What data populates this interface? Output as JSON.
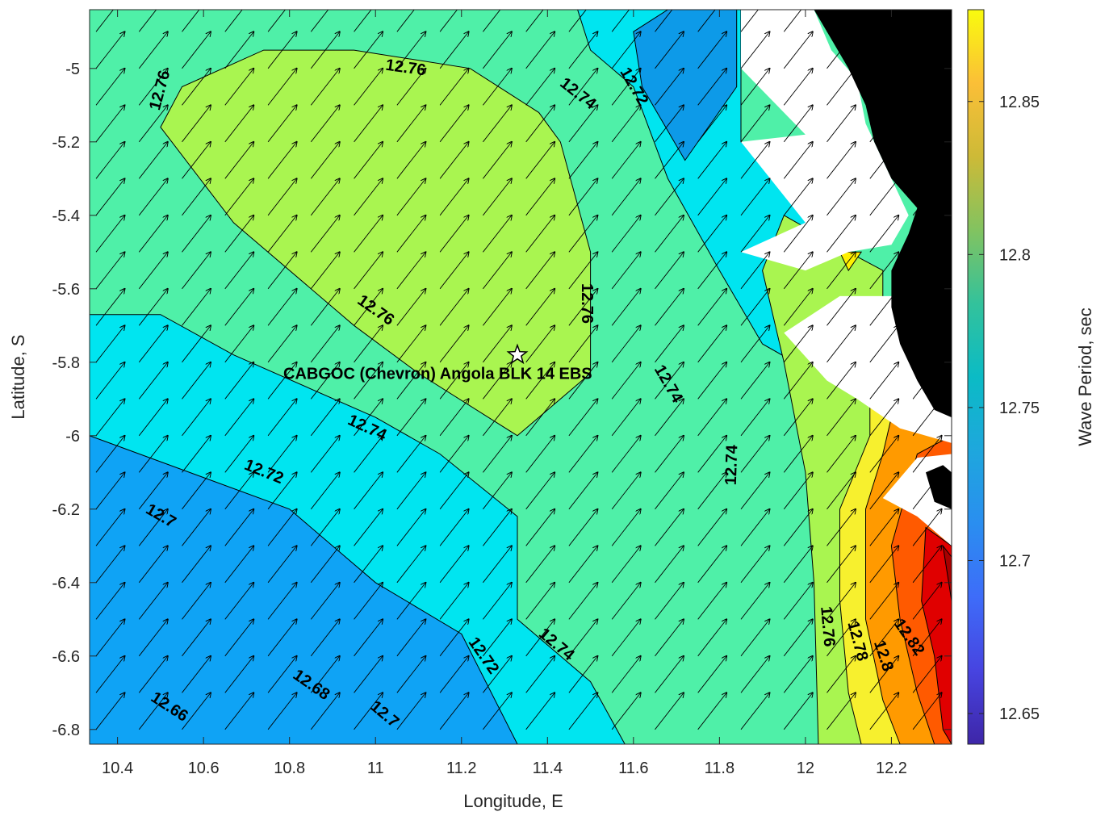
{
  "chart_data": {
    "type": "contour",
    "xlabel": "Longitude, E",
    "ylabel": "Latitude, S",
    "xlim": [
      10.335,
      12.34
    ],
    "ylim": [
      -6.84,
      -4.84
    ],
    "x_ticks": [
      10.4,
      10.6,
      10.8,
      11,
      11.2,
      11.4,
      11.6,
      11.8,
      12,
      12.2
    ],
    "x_tick_labels": [
      "10.4",
      "10.6",
      "10.8",
      "11",
      "11.2",
      "11.4",
      "11.6",
      "11.8",
      "12",
      "12.2"
    ],
    "y_ticks": [
      -5,
      -5.2,
      -5.4,
      -5.6,
      -5.8,
      -6,
      -6.2,
      -6.4,
      -6.6,
      -6.8
    ],
    "y_tick_labels": [
      "-5",
      "-5.2",
      "-5.4",
      "-5.6",
      "-5.8",
      "-6",
      "-6.2",
      "-6.4",
      "-6.6",
      "-6.8"
    ],
    "colorbar": {
      "label": "Wave Period, sec",
      "range": [
        12.64,
        12.88
      ],
      "ticks": [
        12.65,
        12.7,
        12.75,
        12.8,
        12.85
      ],
      "tick_labels": [
        "12.65",
        "12.7",
        "12.75",
        "12.8",
        "12.85"
      ]
    },
    "contour_levels": [
      12.66,
      12.68,
      12.7,
      12.72,
      12.74,
      12.76,
      12.78,
      12.8,
      12.82,
      12.84,
      12.86
    ],
    "contour_labels": [
      {
        "text": "12.76",
        "lon": 10.5,
        "lat": -5.06,
        "angle": -75
      },
      {
        "text": "12.76",
        "lon": 11.07,
        "lat": -5.0,
        "angle": 8
      },
      {
        "text": "12.74",
        "lon": 11.47,
        "lat": -5.07,
        "angle": 38
      },
      {
        "text": "12.72",
        "lon": 11.6,
        "lat": -5.05,
        "angle": 60
      },
      {
        "text": "12.76",
        "lon": 11.49,
        "lat": -5.64,
        "angle": 90
      },
      {
        "text": "12.76",
        "lon": 11.0,
        "lat": -5.66,
        "angle": 35
      },
      {
        "text": "12.74",
        "lon": 11.68,
        "lat": -5.86,
        "angle": 60
      },
      {
        "text": "12.74",
        "lon": 10.98,
        "lat": -5.98,
        "angle": 25
      },
      {
        "text": "12.74",
        "lon": 11.83,
        "lat": -6.08,
        "angle": -88
      },
      {
        "text": "12.72",
        "lon": 10.74,
        "lat": -6.1,
        "angle": 22
      },
      {
        "text": "12.7",
        "lon": 10.5,
        "lat": -6.22,
        "angle": 30
      },
      {
        "text": "12.72",
        "lon": 11.25,
        "lat": -6.6,
        "angle": 55
      },
      {
        "text": "12.74",
        "lon": 11.42,
        "lat": -6.57,
        "angle": 40
      },
      {
        "text": "12.76",
        "lon": 12.05,
        "lat": -6.52,
        "angle": 85
      },
      {
        "text": "12.78",
        "lon": 12.12,
        "lat": -6.56,
        "angle": 75
      },
      {
        "text": "12.8",
        "lon": 12.18,
        "lat": -6.6,
        "angle": 72
      },
      {
        "text": "12.82",
        "lon": 12.24,
        "lat": -6.55,
        "angle": 55
      },
      {
        "text": "12.68",
        "lon": 10.85,
        "lat": -6.68,
        "angle": 35
      },
      {
        "text": "12.7",
        "lon": 11.02,
        "lat": -6.76,
        "angle": 40
      },
      {
        "text": "12.66",
        "lon": 10.52,
        "lat": -6.74,
        "angle": 33
      }
    ],
    "site": {
      "name": "CABGOC (Chevron)  Angola BLK 14  EBS",
      "lon": 11.33,
      "lat": -5.78,
      "marker": "star"
    },
    "regions": [
      {
        "value": 12.662,
        "color": "#0b1fa8",
        "points": [
          [
            10.335,
            -6.84
          ],
          [
            10.335,
            -6.5
          ],
          [
            10.5,
            -6.6
          ],
          [
            10.67,
            -6.72
          ],
          [
            10.85,
            -6.84
          ]
        ]
      },
      {
        "value": 12.69,
        "color": "#0a5ef2",
        "points": [
          [
            10.335,
            -6.34
          ],
          [
            10.5,
            -6.4
          ],
          [
            10.7,
            -6.42
          ],
          [
            10.95,
            -6.48
          ],
          [
            11.15,
            -6.56
          ],
          [
            11.25,
            -6.64
          ],
          [
            11.33,
            -6.84
          ],
          [
            10.335,
            -6.84
          ]
        ]
      },
      {
        "value": 12.72,
        "color": "#0fa3f5",
        "points": [
          [
            10.335,
            -5.84
          ],
          [
            10.5,
            -6.0
          ],
          [
            10.7,
            -6.08
          ],
          [
            10.9,
            -6.16
          ],
          [
            11.12,
            -6.28
          ],
          [
            11.18,
            -6.5
          ],
          [
            11.33,
            -6.54
          ],
          [
            11.33,
            -6.84
          ],
          [
            10.335,
            -6.84
          ]
        ]
      },
      {
        "value": 12.742,
        "color": "#00e5f0",
        "points": [
          [
            10.335,
            -5.67
          ],
          [
            10.5,
            -5.67
          ],
          [
            10.67,
            -5.78
          ],
          [
            11.0,
            -5.95
          ],
          [
            11.15,
            -6.05
          ],
          [
            11.33,
            -6.22
          ],
          [
            11.33,
            -6.5
          ],
          [
            11.5,
            -6.67
          ],
          [
            11.58,
            -6.84
          ],
          [
            11.33,
            -6.84
          ],
          [
            11.2,
            -6.54
          ],
          [
            11.0,
            -6.4
          ],
          [
            10.8,
            -6.2
          ],
          [
            10.335,
            -6.0
          ]
        ]
      },
      {
        "value": 12.742,
        "color": "#00e5f0",
        "points": [
          [
            11.47,
            -4.84
          ],
          [
            11.85,
            -4.84
          ],
          [
            11.85,
            -5.2
          ],
          [
            12.0,
            -5.3
          ],
          [
            12.1,
            -5.55
          ],
          [
            12.2,
            -5.7
          ],
          [
            12.25,
            -5.85
          ],
          [
            12.05,
            -5.85
          ],
          [
            11.9,
            -5.75
          ],
          [
            11.8,
            -5.55
          ],
          [
            11.68,
            -5.3
          ],
          [
            11.6,
            -5.05
          ],
          [
            11.5,
            -4.95
          ]
        ]
      },
      {
        "value": 12.725,
        "color": "#0d9ae8",
        "points": [
          [
            11.68,
            -4.84
          ],
          [
            11.84,
            -4.84
          ],
          [
            11.84,
            -5.05
          ],
          [
            11.72,
            -5.25
          ],
          [
            11.62,
            -5.05
          ],
          [
            11.6,
            -4.9
          ]
        ]
      },
      {
        "value": 12.775,
        "color": "#a9f550",
        "points": [
          [
            10.5,
            -5.16
          ],
          [
            10.55,
            -5.05
          ],
          [
            10.74,
            -4.95
          ],
          [
            10.95,
            -4.95
          ],
          [
            11.22,
            -5.0
          ],
          [
            11.38,
            -5.12
          ],
          [
            11.43,
            -5.2
          ],
          [
            11.5,
            -5.5
          ],
          [
            11.5,
            -5.83
          ],
          [
            11.33,
            -6.0
          ],
          [
            11.1,
            -5.83
          ],
          [
            10.95,
            -5.7
          ],
          [
            10.67,
            -5.42
          ]
        ]
      },
      {
        "value": 12.79,
        "color": "#a9f550",
        "points": [
          [
            11.95,
            -5.4
          ],
          [
            12.1,
            -5.5
          ],
          [
            12.18,
            -5.55
          ],
          [
            12.18,
            -5.75
          ],
          [
            12.28,
            -5.95
          ],
          [
            12.34,
            -6.1
          ],
          [
            12.34,
            -6.2
          ],
          [
            12.24,
            -6.4
          ],
          [
            12.18,
            -6.84
          ],
          [
            12.03,
            -6.84
          ],
          [
            12.02,
            -6.4
          ],
          [
            12.0,
            -6.1
          ],
          [
            11.95,
            -5.8
          ],
          [
            11.9,
            -5.55
          ]
        ]
      },
      {
        "value": 12.81,
        "color": "#f7f02e",
        "points": [
          [
            12.15,
            -5.88
          ],
          [
            12.25,
            -5.95
          ],
          [
            12.34,
            -6.05
          ],
          [
            12.34,
            -6.84
          ],
          [
            12.13,
            -6.84
          ],
          [
            12.1,
            -6.7
          ],
          [
            12.08,
            -6.45
          ],
          [
            12.08,
            -6.2
          ],
          [
            12.15,
            -6.0
          ]
        ]
      },
      {
        "value": 12.82,
        "color": "#fef000",
        "points": [
          [
            12.08,
            -5.5
          ],
          [
            12.13,
            -5.5
          ],
          [
            12.1,
            -5.55
          ]
        ]
      },
      {
        "value": 12.83,
        "color": "#ff9a00",
        "points": [
          [
            12.2,
            -5.95
          ],
          [
            12.34,
            -6.0
          ],
          [
            12.34,
            -6.84
          ],
          [
            12.22,
            -6.84
          ],
          [
            12.18,
            -6.72
          ],
          [
            12.14,
            -6.5
          ],
          [
            12.14,
            -6.2
          ],
          [
            12.18,
            -6.05
          ]
        ]
      },
      {
        "value": 12.85,
        "color": "#ff5a00",
        "points": [
          [
            12.26,
            -6.05
          ],
          [
            12.34,
            -6.0
          ],
          [
            12.34,
            -6.84
          ],
          [
            12.3,
            -6.84
          ],
          [
            12.26,
            -6.7
          ],
          [
            12.22,
            -6.5
          ],
          [
            12.2,
            -6.3
          ]
        ]
      },
      {
        "value": 12.87,
        "color": "#e00000",
        "points": [
          [
            12.28,
            -6.25
          ],
          [
            12.34,
            -6.3
          ],
          [
            12.34,
            -6.84
          ],
          [
            12.32,
            -6.8
          ],
          [
            12.3,
            -6.6
          ],
          [
            12.27,
            -6.45
          ]
        ]
      },
      {
        "value": 12.88,
        "color": "#a80000",
        "points": [
          [
            12.32,
            -6.3
          ],
          [
            12.34,
            -6.33
          ],
          [
            12.34,
            -6.45
          ]
        ]
      }
    ],
    "masks": {
      "white_color": "#ffffff",
      "land_color": "#000000",
      "white": [
        [
          [
            11.85,
            -4.84
          ],
          [
            12.02,
            -4.84
          ],
          [
            12.06,
            -4.95
          ],
          [
            12.12,
            -5.03
          ],
          [
            12.14,
            -5.15
          ],
          [
            12.18,
            -5.25
          ],
          [
            12.22,
            -5.35
          ],
          [
            12.24,
            -5.4
          ],
          [
            12.2,
            -5.48
          ],
          [
            12.1,
            -5.5
          ],
          [
            12.0,
            -5.55
          ],
          [
            11.85,
            -5.5
          ],
          [
            12.0,
            -5.42
          ],
          [
            11.85,
            -5.2
          ],
          [
            12.0,
            -5.18
          ],
          [
            11.85,
            -5.0
          ]
        ],
        [
          [
            11.95,
            -5.72
          ],
          [
            12.08,
            -5.62
          ],
          [
            12.2,
            -5.62
          ],
          [
            12.26,
            -5.72
          ],
          [
            12.28,
            -5.85
          ],
          [
            12.32,
            -5.92
          ],
          [
            12.34,
            -5.95
          ],
          [
            12.34,
            -6.02
          ],
          [
            12.22,
            -5.98
          ],
          [
            12.12,
            -5.9
          ],
          [
            12.05,
            -5.85
          ]
        ],
        [
          [
            12.18,
            -6.17
          ],
          [
            12.26,
            -6.06
          ],
          [
            12.34,
            -6.05
          ],
          [
            12.34,
            -6.3
          ],
          [
            12.26,
            -6.22
          ]
        ]
      ],
      "land": [
        [
          [
            12.02,
            -4.84
          ],
          [
            12.34,
            -4.84
          ],
          [
            12.34,
            -5.95
          ],
          [
            12.3,
            -5.93
          ],
          [
            12.26,
            -5.85
          ],
          [
            12.22,
            -5.75
          ],
          [
            12.2,
            -5.65
          ],
          [
            12.2,
            -5.55
          ],
          [
            12.24,
            -5.45
          ],
          [
            12.26,
            -5.38
          ],
          [
            12.2,
            -5.3
          ],
          [
            12.16,
            -5.2
          ],
          [
            12.14,
            -5.1
          ],
          [
            12.1,
            -5.0
          ],
          [
            12.06,
            -4.92
          ]
        ],
        [
          [
            12.28,
            -6.1
          ],
          [
            12.32,
            -6.08
          ],
          [
            12.34,
            -6.1
          ],
          [
            12.34,
            -6.2
          ],
          [
            12.3,
            -6.18
          ]
        ]
      ]
    },
    "vector_field": {
      "direction_deg": 38,
      "lon_step": 0.1,
      "lat_step": 0.1,
      "lon_start": 10.35,
      "lat_start": -6.8
    }
  }
}
